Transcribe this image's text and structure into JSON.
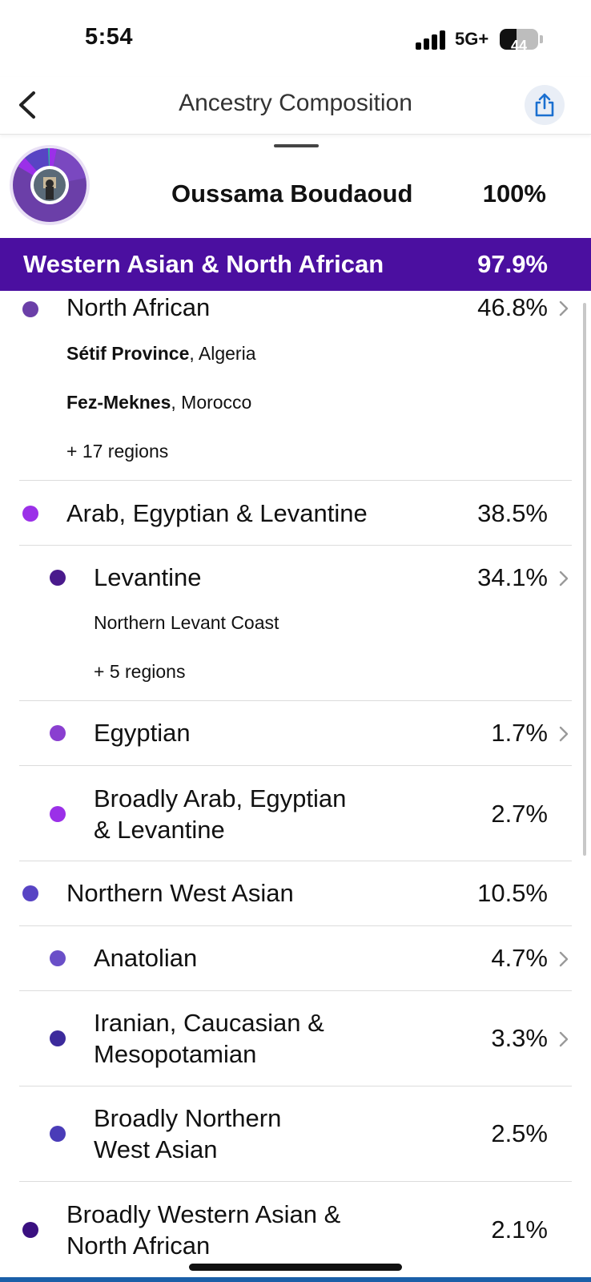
{
  "status_bar": {
    "time": "5:54",
    "network": "5G+",
    "battery": "44",
    "battery_level_percent": 44
  },
  "header": {
    "title": "Ancestry Composition",
    "back_icon": "chevron-left-icon",
    "share_icon": "share-icon"
  },
  "profile": {
    "name": "Oussama Boudaoud",
    "percent": "100%"
  },
  "banner": {
    "label": "Western Asian & North African",
    "percent": "97.9%",
    "color": "#4b0fa0"
  },
  "rows": [
    {
      "label": "North African",
      "percent": "46.8%",
      "color": "#6b3fa8",
      "chevron": true,
      "level": 0,
      "regions": [
        {
          "bold": "Sétif Province",
          "rest": ", Algeria"
        },
        {
          "bold": "Fez-Meknes",
          "rest": ", Morocco"
        }
      ],
      "more": "+ 17 regions"
    },
    {
      "label": "Arab, Egyptian & Levantine",
      "percent": "38.5%",
      "color": "#9b30e8",
      "chevron": false,
      "level": 0
    },
    {
      "label": "Levantine",
      "percent": "34.1%",
      "color": "#4a1a8c",
      "chevron": true,
      "level": 1,
      "regions": [
        {
          "bold": "",
          "rest": "Northern Levant Coast"
        }
      ],
      "more": "+ 5 regions"
    },
    {
      "label": "Egyptian",
      "percent": "1.7%",
      "color": "#8a3fd0",
      "chevron": true,
      "level": 1
    },
    {
      "label_lines": [
        "Broadly Arab, Egyptian",
        "& Levantine"
      ],
      "percent": "2.7%",
      "color": "#9b30e8",
      "chevron": false,
      "level": 1
    },
    {
      "label": "Northern West Asian",
      "percent": "10.5%",
      "color": "#5844c4",
      "chevron": false,
      "level": 0
    },
    {
      "label": "Anatolian",
      "percent": "4.7%",
      "color": "#6a4fc8",
      "chevron": true,
      "level": 1
    },
    {
      "label_lines": [
        "Iranian, Caucasian &",
        "Mesopotamian"
      ],
      "percent": "3.3%",
      "color": "#3c2a9c",
      "chevron": true,
      "level": 1
    },
    {
      "label_lines": [
        "Broadly Northern",
        "West Asian"
      ],
      "percent": "2.5%",
      "color": "#4a3cb8",
      "chevron": false,
      "level": 1
    },
    {
      "label_lines": [
        "Broadly Western Asian &",
        "North African"
      ],
      "percent": "2.1%",
      "color": "#3a1080",
      "chevron": false,
      "level": 0
    }
  ]
}
